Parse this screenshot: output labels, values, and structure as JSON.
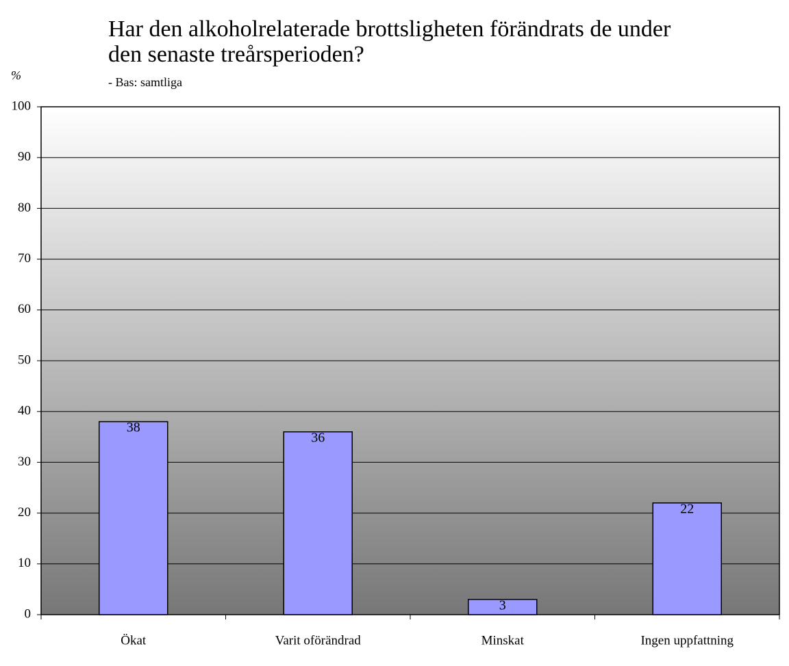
{
  "chart_data": {
    "type": "bar",
    "title": [
      "Har den alkoholrelaterade brottsligheten förändrats de under",
      "den senaste treårsperioden?"
    ],
    "subtitle": "- Bas: samtliga",
    "ylabel": "%",
    "categories": [
      "Ökat",
      "Varit oförändrad",
      "Minskat",
      "Ingen uppfattning"
    ],
    "values": [
      38,
      36,
      3,
      22
    ],
    "color": "#9999ff",
    "ylim": [
      0,
      100
    ],
    "yticks": [
      0,
      10,
      20,
      30,
      40,
      50,
      60,
      70,
      80,
      90,
      100
    ],
    "grid": true
  }
}
